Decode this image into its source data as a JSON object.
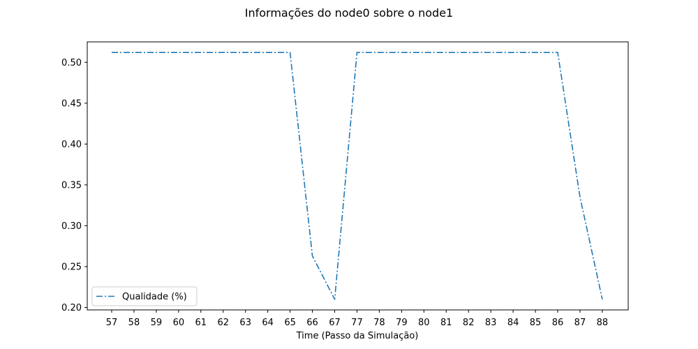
{
  "chart_data": {
    "type": "line",
    "title": "Informações do node0 sobre o node1",
    "xlabel": "Time (Passo da Simulação)",
    "ylabel": "",
    "categories": [
      "57",
      "58",
      "59",
      "60",
      "61",
      "62",
      "63",
      "64",
      "65",
      "66",
      "67",
      "77",
      "78",
      "79",
      "80",
      "81",
      "82",
      "83",
      "84",
      "85",
      "86",
      "87",
      "88"
    ],
    "series": [
      {
        "name": "Qualidade (%)",
        "values": [
          0.512,
          0.512,
          0.512,
          0.512,
          0.512,
          0.512,
          0.512,
          0.512,
          0.512,
          0.263,
          0.21,
          0.512,
          0.512,
          0.512,
          0.512,
          0.512,
          0.512,
          0.512,
          0.512,
          0.512,
          0.512,
          0.335,
          0.21
        ],
        "color": "#1f77b4",
        "line_style": "dash-dot"
      }
    ],
    "ylim": [
      0.197,
      0.525
    ],
    "yticks": [
      0.2,
      0.25,
      0.3,
      0.35,
      0.4,
      0.45,
      0.5
    ],
    "ytick_labels": [
      "0.20",
      "0.25",
      "0.30",
      "0.35",
      "0.40",
      "0.45",
      "0.50"
    ],
    "grid": false,
    "legend_position": "lower-left"
  }
}
